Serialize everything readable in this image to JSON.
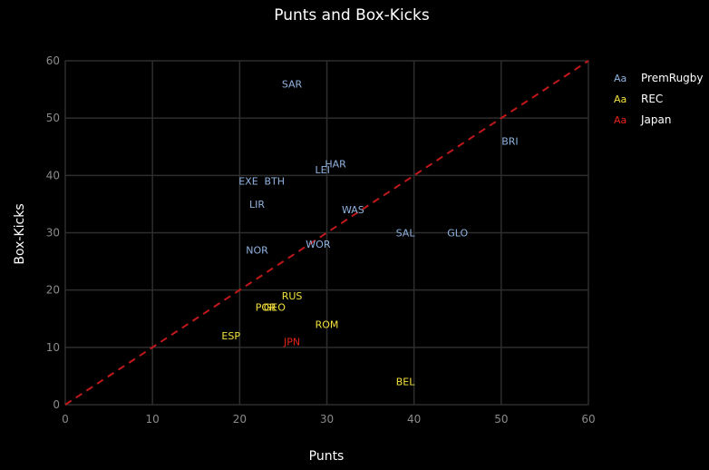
{
  "chart_data": {
    "type": "scatter",
    "title": "Punts and Box-Kicks",
    "xlabel": "Punts",
    "ylabel": "Box-Kicks",
    "xlim": [
      0,
      60
    ],
    "ylim": [
      0,
      60
    ],
    "xticks": [
      0,
      10,
      20,
      30,
      40,
      50,
      60
    ],
    "yticks": [
      0,
      10,
      20,
      30,
      40,
      50,
      60
    ],
    "grid": true,
    "legend_position": "right",
    "legend_marker": "Aa",
    "reference_line": {
      "from": [
        0,
        0
      ],
      "to": [
        60,
        60
      ],
      "style": "dashed",
      "color": "#c0181b"
    },
    "series": [
      {
        "name": "PremRugby",
        "color": "#8fb3e0",
        "points": [
          {
            "label": "SAR",
            "x": 26,
            "y": 56
          },
          {
            "label": "BRI",
            "x": 51,
            "y": 46
          },
          {
            "label": "HAR",
            "x": 31,
            "y": 42
          },
          {
            "label": "LEI",
            "x": 29.5,
            "y": 41
          },
          {
            "label": "EXE",
            "x": 21,
            "y": 39
          },
          {
            "label": "BTH",
            "x": 24,
            "y": 39
          },
          {
            "label": "LIR",
            "x": 22,
            "y": 35
          },
          {
            "label": "WAS",
            "x": 33,
            "y": 34
          },
          {
            "label": "SAL",
            "x": 39,
            "y": 30
          },
          {
            "label": "GLO",
            "x": 45,
            "y": 30
          },
          {
            "label": "NOR",
            "x": 22,
            "y": 27
          },
          {
            "label": "WOR",
            "x": 29,
            "y": 28
          }
        ]
      },
      {
        "name": "REC",
        "color": "#f2e13c",
        "points": [
          {
            "label": "RUS",
            "x": 26,
            "y": 19
          },
          {
            "label": "POR",
            "x": 23,
            "y": 17
          },
          {
            "label": "GEO",
            "x": 24,
            "y": 17
          },
          {
            "label": "ROM",
            "x": 30,
            "y": 14
          },
          {
            "label": "ESP",
            "x": 19,
            "y": 12
          },
          {
            "label": "BEL",
            "x": 39,
            "y": 4
          }
        ]
      },
      {
        "name": "Japan",
        "color": "#e8231a",
        "points": [
          {
            "label": "JPN",
            "x": 26,
            "y": 11
          }
        ]
      }
    ]
  }
}
